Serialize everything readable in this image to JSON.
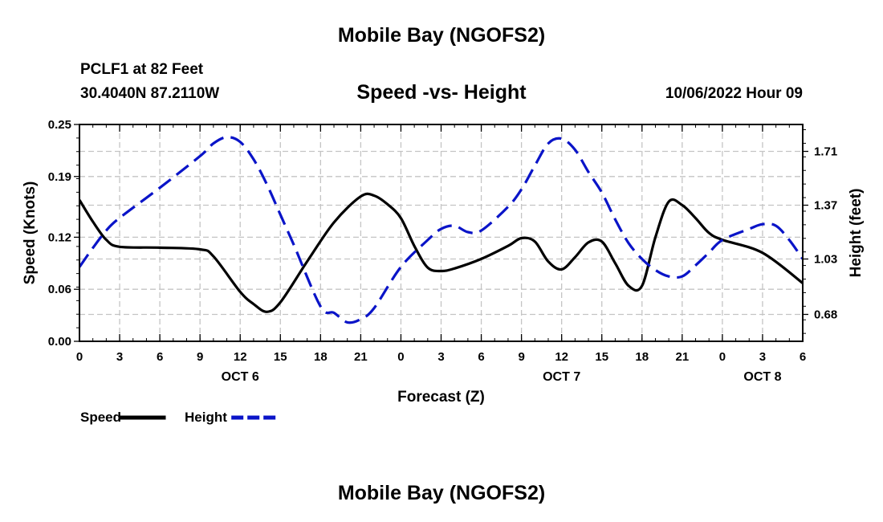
{
  "header": {
    "title": "Mobile Bay (NGOFS2)",
    "station": "PCLF1 at 82 Feet",
    "coords": "30.4040N  87.2110W",
    "subtitle": "Speed -vs- Height",
    "datetime": "10/06/2022 Hour 09"
  },
  "footer": {
    "title": "Mobile Bay (NGOFS2)"
  },
  "chart_data": {
    "type": "line",
    "title": "Speed -vs- Height",
    "xlabel": "Forecast (Z)",
    "ylabel": "Speed (Knots)",
    "y2label": "Height (feet)",
    "x_range_hours": [
      0,
      54
    ],
    "x_ticks": [
      {
        "h": 0,
        "label": "0"
      },
      {
        "h": 3,
        "label": "3"
      },
      {
        "h": 6,
        "label": "6"
      },
      {
        "h": 9,
        "label": "9"
      },
      {
        "h": 12,
        "label": "12"
      },
      {
        "h": 15,
        "label": "15"
      },
      {
        "h": 18,
        "label": "18"
      },
      {
        "h": 21,
        "label": "21"
      },
      {
        "h": 24,
        "label": "0"
      },
      {
        "h": 27,
        "label": "3"
      },
      {
        "h": 30,
        "label": "6"
      },
      {
        "h": 33,
        "label": "9"
      },
      {
        "h": 36,
        "label": "12"
      },
      {
        "h": 39,
        "label": "15"
      },
      {
        "h": 42,
        "label": "18"
      },
      {
        "h": 45,
        "label": "21"
      },
      {
        "h": 48,
        "label": "0"
      },
      {
        "h": 51,
        "label": "3"
      },
      {
        "h": 54,
        "label": "6"
      }
    ],
    "day_labels": [
      {
        "h": 12,
        "label": "OCT 6"
      },
      {
        "h": 36,
        "label": "OCT 7"
      },
      {
        "h": 51,
        "label": "OCT 8"
      }
    ],
    "ylim": [
      0,
      0.25
    ],
    "y_ticks": [
      "0.00",
      "0.06",
      "0.12",
      "0.19",
      "0.25"
    ],
    "y2lim": [
      0.51,
      1.88
    ],
    "y2_ticks": [
      "0.68",
      "1.03",
      "1.37",
      "1.71"
    ],
    "legend": [
      {
        "name": "Speed",
        "color": "#000000",
        "style": "solid"
      },
      {
        "name": "Height",
        "color": "#0a14c8",
        "style": "dashed"
      }
    ],
    "series": [
      {
        "name": "Speed",
        "axis": "left",
        "units": "knots",
        "x": [
          0,
          1,
          2,
          3,
          6,
          9,
          10,
          12,
          13,
          14,
          15,
          17,
          19,
          21,
          22,
          23,
          24,
          25,
          26,
          27,
          28,
          30,
          32,
          33,
          34,
          35,
          36,
          37,
          38,
          39,
          40,
          41,
          42,
          43,
          44,
          45,
          46,
          47,
          48,
          51,
          54
        ],
        "values": [
          0.163,
          0.138,
          0.117,
          0.109,
          0.108,
          0.106,
          0.098,
          0.057,
          0.043,
          0.034,
          0.045,
          0.092,
          0.137,
          0.167,
          0.168,
          0.158,
          0.142,
          0.11,
          0.085,
          0.081,
          0.084,
          0.095,
          0.11,
          0.119,
          0.115,
          0.092,
          0.083,
          0.097,
          0.114,
          0.115,
          0.09,
          0.064,
          0.064,
          0.12,
          0.161,
          0.157,
          0.142,
          0.125,
          0.117,
          0.102,
          0.067
        ]
      },
      {
        "name": "Height",
        "axis": "right",
        "units": "feet",
        "x": [
          0,
          1,
          2,
          3,
          6,
          9,
          10,
          11,
          12,
          13,
          14,
          15,
          16,
          18,
          19,
          20,
          21,
          22,
          24,
          26,
          27,
          28,
          29,
          30,
          32,
          33,
          34,
          35,
          36,
          37,
          38,
          39,
          40,
          41,
          42,
          43,
          44,
          45,
          46,
          47,
          48,
          50,
          51,
          52,
          53,
          54
        ],
        "values": [
          0.98,
          1.1,
          1.21,
          1.29,
          1.48,
          1.68,
          1.76,
          1.8,
          1.77,
          1.66,
          1.5,
          1.31,
          1.12,
          0.73,
          0.69,
          0.63,
          0.65,
          0.72,
          0.98,
          1.15,
          1.22,
          1.24,
          1.2,
          1.21,
          1.36,
          1.47,
          1.62,
          1.76,
          1.79,
          1.72,
          1.58,
          1.45,
          1.28,
          1.13,
          1.03,
          0.96,
          0.92,
          0.92,
          0.99,
          1.07,
          1.15,
          1.22,
          1.25,
          1.24,
          1.15,
          1.03
        ]
      }
    ]
  }
}
